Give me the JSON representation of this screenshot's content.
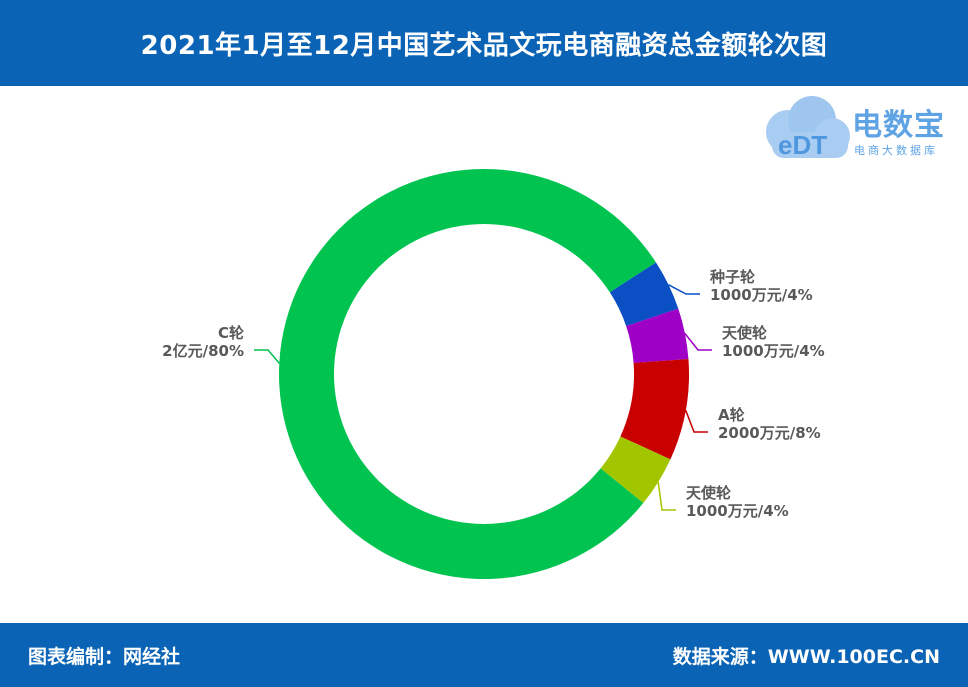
{
  "header": {
    "title": "2021年1月至12月中国艺术品文玩电商融资总金额轮次图"
  },
  "logo": {
    "brand": "电数宝",
    "subtitle": "电商大数据库",
    "mark": "eDT"
  },
  "footer": {
    "left": "图表编制：网经社",
    "right": "数据来源：WWW.100EC.CN"
  },
  "chart_data": {
    "type": "pie",
    "donut": true,
    "slices": [
      {
        "name": "种子轮",
        "amount": "1000万元",
        "percent": 4,
        "label": "1000万元/4%",
        "color": "#0a4fc3"
      },
      {
        "name": "天使轮",
        "amount": "1000万元",
        "percent": 4,
        "label": "1000万元/4%",
        "color": "#9e00c6"
      },
      {
        "name": "A轮",
        "amount": "2000万元",
        "percent": 8,
        "label": "2000万元/8%",
        "color": "#c90000"
      },
      {
        "name": "天使轮",
        "amount": "1000万元",
        "percent": 4,
        "label": "1000万元/4%",
        "color": "#a1c600"
      },
      {
        "name": "C轮",
        "amount": "2亿元",
        "percent": 80,
        "label": "2亿元/80%",
        "color": "#00c44f"
      }
    ]
  }
}
